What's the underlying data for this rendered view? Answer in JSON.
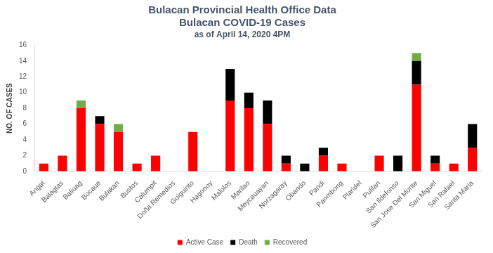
{
  "chart_data": {
    "type": "bar",
    "title": [
      "Bulacan Provincial Health Office Data",
      "Bulacan COVID-19 Cases"
    ],
    "subtitle": "as of April 14, 2020 4PM",
    "y_label": "NO. OF CASES",
    "categories": [
      "Angat",
      "Balagtas",
      "Baliuag",
      "Bocaue",
      "Bulakan",
      "Bustos",
      "Calumpit",
      "Doña Remedios",
      "Guiguinto",
      "Hagonoy",
      "Malolos",
      "Marilao",
      "Meycauayan",
      "Norzagaray",
      "Obando",
      "Pandi",
      "Paombong",
      "Plaridel",
      "Pulilan",
      "San Ildefonso",
      "San Jose Del Monte",
      "San Miguel",
      "San Rafael",
      "Santa Maria"
    ],
    "series": [
      {
        "name": "Active Case",
        "color": "#ff0000",
        "values": [
          1,
          2,
          8,
          6,
          5,
          1,
          2,
          0,
          5,
          0,
          9,
          8,
          6,
          1,
          0,
          2,
          1,
          0,
          2,
          0,
          11,
          1,
          1,
          3
        ]
      },
      {
        "name": "Death",
        "color": "#000000",
        "values": [
          0,
          0,
          0,
          1,
          0,
          0,
          0,
          0,
          0,
          0,
          4,
          2,
          3,
          1,
          1,
          1,
          0,
          0,
          0,
          2,
          3,
          1,
          0,
          3
        ]
      },
      {
        "name": "Recovered",
        "color": "#70ad47",
        "values": [
          0,
          0,
          1,
          0,
          1,
          0,
          0,
          0,
          0,
          0,
          0,
          0,
          0,
          0,
          0,
          0,
          0,
          0,
          0,
          0,
          1,
          0,
          0,
          0
        ]
      }
    ],
    "stacked": true,
    "ylim": [
      0,
      16
    ],
    "yticks": [
      0,
      2,
      4,
      6,
      8,
      10,
      12,
      14,
      16
    ],
    "grid": false,
    "legend": "bottom"
  }
}
